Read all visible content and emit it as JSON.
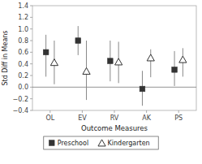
{
  "chart_data": {
    "type": "dot",
    "categories": [
      "OL",
      "EV",
      "RV",
      "AK",
      "PS"
    ],
    "series": [
      {
        "name": "Preschool",
        "color": "#333333",
        "marker": "square",
        "values": [
          0.6,
          0.8,
          0.45,
          -0.03,
          0.3
        ],
        "ci_low": [
          0.18,
          0.55,
          0.1,
          -0.32,
          0.02
        ],
        "ci_high": [
          0.9,
          1.05,
          0.8,
          0.28,
          0.62
        ]
      },
      {
        "name": "Kindergarten",
        "color": "#333333",
        "marker": "triangle-open",
        "values": [
          0.42,
          0.27,
          0.43,
          0.5,
          0.47
        ],
        "ci_low": [
          0.05,
          -0.22,
          0.07,
          0.17,
          0.18
        ],
        "ci_high": [
          0.8,
          0.8,
          0.78,
          0.65,
          0.67
        ]
      }
    ],
    "xlabel": "Outcome Measures",
    "ylabel": "Std Diff in Means",
    "ylim": [
      -0.4,
      1.4
    ],
    "yticks": [
      {
        "value": -0.4,
        "label": "−0.4"
      },
      {
        "value": -0.2,
        "label": "−0.2"
      },
      {
        "value": 0,
        "label": "0.0"
      },
      0.2,
      0.4,
      0.6,
      0.8,
      {
        "value": 1,
        "label": "1.0"
      },
      1.2,
      1.4
    ],
    "legend": "bottom"
  }
}
